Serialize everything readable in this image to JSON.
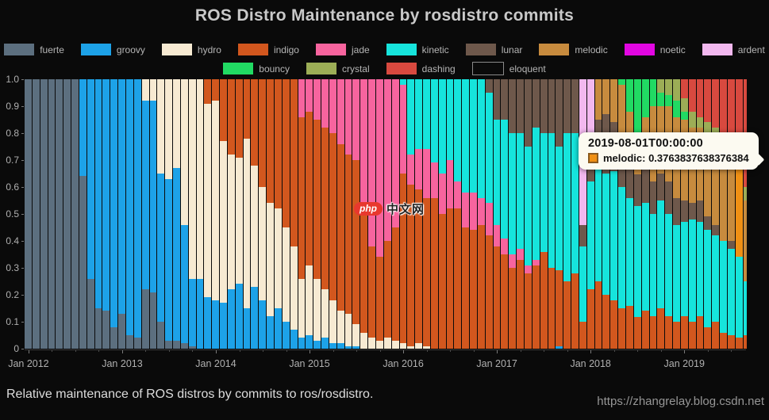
{
  "title": "ROS Distro Maintenance by rosdistro commits",
  "caption": "Relative maintenance of ROS distros by commits to ros/rosdistro.",
  "watermark_url": "https://zhangrelay.blog.csdn.net",
  "center_watermark": {
    "badge_text": "php",
    "site_text": "中文网"
  },
  "tooltip": {
    "date": "2019-08-01T00:00:00",
    "text": "melodic: 0.3763837638376384",
    "highlight_month": "2019-08",
    "highlight_series": "melodic"
  },
  "colors": {
    "fuerte": "#5c6f7f",
    "groovy": "#1da2e8",
    "hydro": "#f7ead2",
    "indigo": "#d2571e",
    "jade": "#f7649e",
    "kinetic": "#16e4dc",
    "lunar": "#6e584b",
    "melodic": "#c78b3e",
    "noetic": "#e106e1",
    "ardent": "#f2b8ef",
    "bouncy": "#21da63",
    "crystal": "#9cad56",
    "dashing": "#d8493f",
    "eloquent": "#0a0a0a",
    "melodic_highlight": "#f09014",
    "eloquent_border": "#8a8a8a"
  },
  "legend_rows": [
    [
      "fuerte",
      "groovy",
      "hydro",
      "indigo",
      "jade",
      "kinetic",
      "lunar",
      "melodic",
      "noetic",
      "ardent"
    ],
    [
      "bouncy",
      "crystal",
      "dashing",
      "eloquent"
    ]
  ],
  "chart_data": {
    "type": "bar",
    "stacked": true,
    "title": "ROS Distro Maintenance by rosdistro commits",
    "xlabel": "",
    "ylabel": "",
    "ylim": [
      0,
      1
    ],
    "grid": false,
    "legend_position": "top",
    "y_tick_labels": [
      "1.0",
      "0.9",
      "0.8",
      "0.7",
      "0.6",
      "0.5",
      "0.4",
      "0.3",
      "0.2",
      "0.1",
      "0"
    ],
    "x_tick_labels": [
      "Jan 2012",
      "Jan 2013",
      "Jan 2014",
      "Jan 2015",
      "Jan 2016",
      "Jan 2017",
      "Jan 2018",
      "Jan 2019"
    ],
    "order": [
      "fuerte",
      "groovy",
      "hydro",
      "indigo",
      "jade",
      "kinetic",
      "lunar",
      "melodic",
      "noetic",
      "ardent",
      "bouncy",
      "crystal",
      "dashing",
      "eloquent"
    ],
    "months": [
      {
        "m": "2012-01",
        "fuerte": 1
      },
      {
        "m": "2012-02",
        "fuerte": 1
      },
      {
        "m": "2012-03",
        "fuerte": 1
      },
      {
        "m": "2012-04",
        "fuerte": 1
      },
      {
        "m": "2012-05",
        "fuerte": 1
      },
      {
        "m": "2012-06",
        "fuerte": 1
      },
      {
        "m": "2012-07",
        "fuerte": 1
      },
      {
        "m": "2012-08",
        "fuerte": 0.64,
        "groovy": 0.36
      },
      {
        "m": "2012-09",
        "fuerte": 0.26,
        "groovy": 0.74
      },
      {
        "m": "2012-10",
        "fuerte": 0.15,
        "groovy": 0.85
      },
      {
        "m": "2012-11",
        "fuerte": 0.14,
        "groovy": 0.86
      },
      {
        "m": "2012-12",
        "fuerte": 0.08,
        "groovy": 0.92
      },
      {
        "m": "2013-01",
        "fuerte": 0.13,
        "groovy": 0.87
      },
      {
        "m": "2013-02",
        "fuerte": 0.05,
        "groovy": 0.95
      },
      {
        "m": "2013-03",
        "fuerte": 0.04,
        "groovy": 0.96
      },
      {
        "m": "2013-04",
        "fuerte": 0.22,
        "groovy": 0.7,
        "hydro": 0.08
      },
      {
        "m": "2013-05",
        "fuerte": 0.21,
        "groovy": 0.71,
        "hydro": 0.08
      },
      {
        "m": "2013-06",
        "fuerte": 0.1,
        "groovy": 0.55,
        "hydro": 0.35
      },
      {
        "m": "2013-07",
        "fuerte": 0.03,
        "groovy": 0.6,
        "hydro": 0.37
      },
      {
        "m": "2013-08",
        "fuerte": 0.03,
        "groovy": 0.64,
        "hydro": 0.33
      },
      {
        "m": "2013-09",
        "fuerte": 0.02,
        "groovy": 0.44,
        "hydro": 0.54
      },
      {
        "m": "2013-10",
        "fuerte": 0.01,
        "groovy": 0.25,
        "hydro": 0.74
      },
      {
        "m": "2013-11",
        "groovy": 0.26,
        "hydro": 0.74
      },
      {
        "m": "2013-12",
        "groovy": 0.19,
        "hydro": 0.72,
        "indigo": 0.09
      },
      {
        "m": "2014-01",
        "groovy": 0.18,
        "hydro": 0.74,
        "indigo": 0.08
      },
      {
        "m": "2014-02",
        "groovy": 0.17,
        "hydro": 0.6,
        "indigo": 0.23
      },
      {
        "m": "2014-03",
        "groovy": 0.22,
        "hydro": 0.5,
        "indigo": 0.28
      },
      {
        "m": "2014-04",
        "groovy": 0.24,
        "hydro": 0.47,
        "indigo": 0.29
      },
      {
        "m": "2014-05",
        "groovy": 0.15,
        "hydro": 0.63,
        "indigo": 0.22
      },
      {
        "m": "2014-06",
        "groovy": 0.23,
        "hydro": 0.45,
        "indigo": 0.32
      },
      {
        "m": "2014-07",
        "groovy": 0.18,
        "hydro": 0.42,
        "indigo": 0.4
      },
      {
        "m": "2014-08",
        "groovy": 0.12,
        "hydro": 0.42,
        "indigo": 0.46
      },
      {
        "m": "2014-09",
        "groovy": 0.15,
        "hydro": 0.37,
        "indigo": 0.48
      },
      {
        "m": "2014-10",
        "groovy": 0.1,
        "hydro": 0.35,
        "indigo": 0.55
      },
      {
        "m": "2014-11",
        "groovy": 0.07,
        "hydro": 0.31,
        "indigo": 0.62
      },
      {
        "m": "2014-12",
        "groovy": 0.04,
        "hydro": 0.22,
        "indigo": 0.6,
        "jade": 0.14
      },
      {
        "m": "2015-01",
        "groovy": 0.05,
        "hydro": 0.26,
        "indigo": 0.57,
        "jade": 0.12
      },
      {
        "m": "2015-02",
        "groovy": 0.03,
        "hydro": 0.23,
        "indigo": 0.59,
        "jade": 0.15
      },
      {
        "m": "2015-03",
        "groovy": 0.04,
        "hydro": 0.18,
        "indigo": 0.6,
        "jade": 0.18
      },
      {
        "m": "2015-04",
        "groovy": 0.02,
        "hydro": 0.16,
        "indigo": 0.62,
        "jade": 0.2
      },
      {
        "m": "2015-05",
        "groovy": 0.02,
        "hydro": 0.12,
        "indigo": 0.62,
        "jade": 0.24
      },
      {
        "m": "2015-06",
        "groovy": 0.01,
        "hydro": 0.12,
        "indigo": 0.59,
        "jade": 0.28
      },
      {
        "m": "2015-07",
        "groovy": 0.01,
        "hydro": 0.08,
        "indigo": 0.61,
        "jade": 0.3
      },
      {
        "m": "2015-08",
        "hydro": 0.06,
        "indigo": 0.44,
        "jade": 0.5
      },
      {
        "m": "2015-09",
        "hydro": 0.04,
        "indigo": 0.34,
        "jade": 0.62
      },
      {
        "m": "2015-10",
        "hydro": 0.03,
        "indigo": 0.31,
        "jade": 0.66
      },
      {
        "m": "2015-11",
        "hydro": 0.04,
        "indigo": 0.36,
        "jade": 0.6
      },
      {
        "m": "2015-12",
        "hydro": 0.03,
        "indigo": 0.42,
        "jade": 0.55
      },
      {
        "m": "2016-01",
        "hydro": 0.02,
        "indigo": 0.63,
        "jade": 0.33,
        "kinetic": 0.02
      },
      {
        "m": "2016-02",
        "hydro": 0.01,
        "indigo": 0.6,
        "jade": 0.11,
        "kinetic": 0.28
      },
      {
        "m": "2016-03",
        "hydro": 0.02,
        "indigo": 0.57,
        "jade": 0.15,
        "kinetic": 0.26
      },
      {
        "m": "2016-04",
        "hydro": 0.01,
        "indigo": 0.55,
        "jade": 0.18,
        "kinetic": 0.26
      },
      {
        "m": "2016-05",
        "indigo": 0.56,
        "jade": 0.13,
        "kinetic": 0.31
      },
      {
        "m": "2016-06",
        "indigo": 0.5,
        "jade": 0.15,
        "kinetic": 0.35
      },
      {
        "m": "2016-07",
        "indigo": 0.52,
        "jade": 0.18,
        "kinetic": 0.3
      },
      {
        "m": "2016-08",
        "indigo": 0.52,
        "jade": 0.1,
        "kinetic": 0.38
      },
      {
        "m": "2016-09",
        "indigo": 0.45,
        "jade": 0.13,
        "kinetic": 0.42
      },
      {
        "m": "2016-10",
        "indigo": 0.44,
        "jade": 0.14,
        "kinetic": 0.42
      },
      {
        "m": "2016-11",
        "indigo": 0.46,
        "jade": 0.1,
        "kinetic": 0.44
      },
      {
        "m": "2016-12",
        "indigo": 0.42,
        "jade": 0.12,
        "kinetic": 0.41,
        "lunar": 0.05
      },
      {
        "m": "2017-01",
        "indigo": 0.38,
        "jade": 0.08,
        "kinetic": 0.39,
        "lunar": 0.15
      },
      {
        "m": "2017-02",
        "indigo": 0.35,
        "jade": 0.06,
        "kinetic": 0.44,
        "lunar": 0.15
      },
      {
        "m": "2017-03",
        "indigo": 0.3,
        "jade": 0.05,
        "kinetic": 0.45,
        "lunar": 0.2
      },
      {
        "m": "2017-04",
        "indigo": 0.33,
        "jade": 0.04,
        "kinetic": 0.43,
        "lunar": 0.2
      },
      {
        "m": "2017-05",
        "indigo": 0.28,
        "jade": 0.03,
        "kinetic": 0.44,
        "lunar": 0.25
      },
      {
        "m": "2017-06",
        "indigo": 0.31,
        "jade": 0.02,
        "kinetic": 0.49,
        "lunar": 0.18
      },
      {
        "m": "2017-07",
        "indigo": 0.36,
        "kinetic": 0.44,
        "lunar": 0.2
      },
      {
        "m": "2017-08",
        "indigo": 0.3,
        "kinetic": 0.5,
        "lunar": 0.2
      },
      {
        "m": "2017-09",
        "groovy": 0.01,
        "indigo": 0.28,
        "kinetic": 0.46,
        "lunar": 0.25
      },
      {
        "m": "2017-10",
        "indigo": 0.25,
        "kinetic": 0.55,
        "lunar": 0.2
      },
      {
        "m": "2017-11",
        "indigo": 0.28,
        "kinetic": 0.52,
        "lunar": 0.2
      },
      {
        "m": "2017-12",
        "indigo": 0.1,
        "kinetic": 0.28,
        "lunar": 0.08,
        "ardent": 0.54
      },
      {
        "m": "2018-01",
        "indigo": 0.22,
        "kinetic": 0.4,
        "lunar": 0.13,
        "ardent": 0.25
      },
      {
        "m": "2018-02",
        "indigo": 0.25,
        "kinetic": 0.44,
        "lunar": 0.16,
        "melodic": 0.15
      },
      {
        "m": "2018-03",
        "indigo": 0.2,
        "kinetic": 0.45,
        "lunar": 0.22,
        "melodic": 0.13
      },
      {
        "m": "2018-04",
        "indigo": 0.18,
        "kinetic": 0.48,
        "lunar": 0.18,
        "melodic": 0.16
      },
      {
        "m": "2018-05",
        "indigo": 0.15,
        "kinetic": 0.45,
        "lunar": 0.2,
        "melodic": 0.18,
        "bouncy": 0.02
      },
      {
        "m": "2018-06",
        "indigo": 0.16,
        "kinetic": 0.4,
        "lunar": 0.16,
        "melodic": 0.16,
        "bouncy": 0.12
      },
      {
        "m": "2018-07",
        "indigo": 0.12,
        "kinetic": 0.42,
        "lunar": 0.12,
        "melodic": 0.06,
        "ardent": 0.02,
        "bouncy": 0.28
      },
      {
        "m": "2018-08",
        "indigo": 0.14,
        "kinetic": 0.4,
        "lunar": 0.14,
        "melodic": 0.18,
        "bouncy": 0.14
      },
      {
        "m": "2018-09",
        "indigo": 0.12,
        "kinetic": 0.38,
        "lunar": 0.12,
        "melodic": 0.28,
        "bouncy": 0.1
      },
      {
        "m": "2018-10",
        "indigo": 0.15,
        "kinetic": 0.4,
        "lunar": 0.1,
        "melodic": 0.25,
        "bouncy": 0.05,
        "crystal": 0.05
      },
      {
        "m": "2018-11",
        "indigo": 0.12,
        "kinetic": 0.38,
        "lunar": 0.12,
        "melodic": 0.28,
        "bouncy": 0.04,
        "crystal": 0.06
      },
      {
        "m": "2018-12",
        "indigo": 0.1,
        "kinetic": 0.36,
        "lunar": 0.1,
        "melodic": 0.3,
        "bouncy": 0.06,
        "crystal": 0.08
      },
      {
        "m": "2019-01",
        "indigo": 0.12,
        "kinetic": 0.35,
        "lunar": 0.08,
        "melodic": 0.3,
        "bouncy": 0.03,
        "crystal": 0.05,
        "dashing": 0.07
      },
      {
        "m": "2019-02",
        "indigo": 0.1,
        "kinetic": 0.38,
        "lunar": 0.06,
        "melodic": 0.28,
        "crystal": 0.06,
        "dashing": 0.12
      },
      {
        "m": "2019-03",
        "indigo": 0.12,
        "kinetic": 0.35,
        "lunar": 0.08,
        "melodic": 0.27,
        "crystal": 0.04,
        "dashing": 0.14
      },
      {
        "m": "2019-04",
        "indigo": 0.08,
        "kinetic": 0.36,
        "lunar": 0.05,
        "melodic": 0.3,
        "crystal": 0.05,
        "dashing": 0.16
      },
      {
        "m": "2019-05",
        "indigo": 0.1,
        "kinetic": 0.32,
        "lunar": 0.04,
        "melodic": 0.32,
        "crystal": 0.04,
        "dashing": 0.18
      },
      {
        "m": "2019-06",
        "indigo": 0.06,
        "kinetic": 0.34,
        "melodic": 0.33,
        "noetic": 0.01,
        "crystal": 0.06,
        "dashing": 0.2
      },
      {
        "m": "2019-07",
        "indigo": 0.05,
        "kinetic": 0.32,
        "lunar": 0.03,
        "melodic": 0.35,
        "noetic": 0.01,
        "crystal": 0.04,
        "dashing": 0.2
      },
      {
        "m": "2019-08",
        "indigo": 0.04,
        "kinetic": 0.3,
        "melodic": 0.3763837638376384,
        "noetic": 0.01,
        "bouncy": 0.02,
        "crystal": 0.05,
        "dashing": 0.2036162361623616
      },
      {
        "m": "2019-09",
        "partial": true,
        "indigo": 0.05,
        "kinetic": 0.2,
        "melodic": 0.3,
        "crystal": 0.05,
        "dashing": 0.4
      }
    ]
  }
}
